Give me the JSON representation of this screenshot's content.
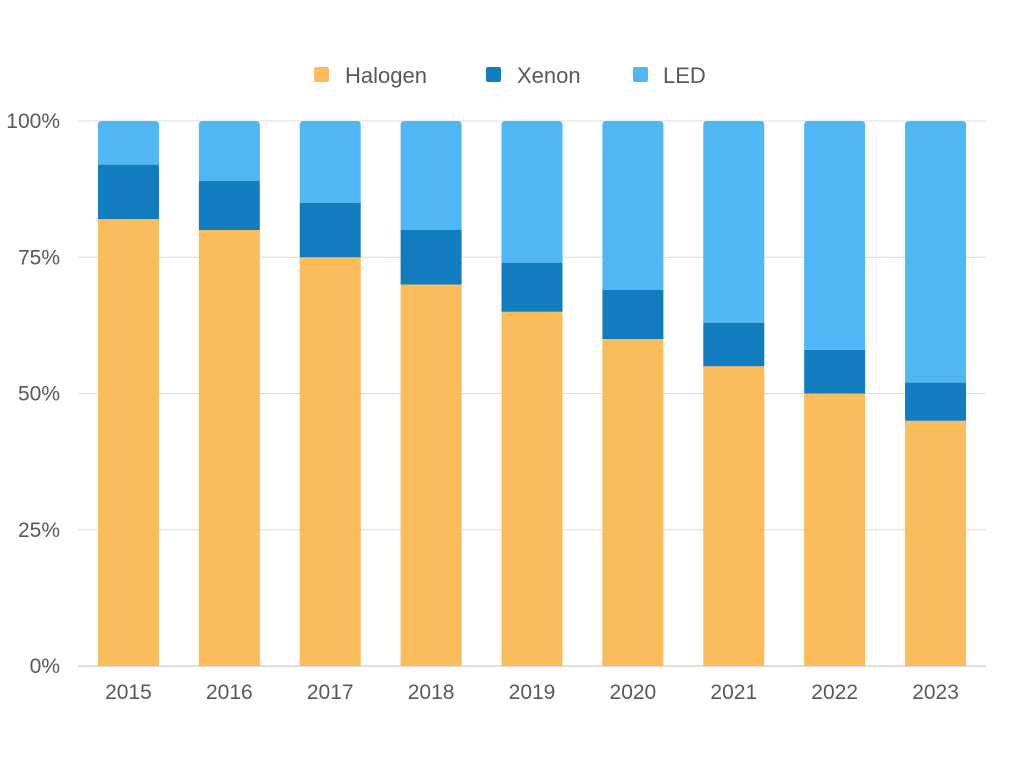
{
  "chart_data": {
    "type": "bar",
    "stacked": true,
    "percent": true,
    "categories": [
      "2015",
      "2016",
      "2017",
      "2018",
      "2019",
      "2020",
      "2021",
      "2022",
      "2023"
    ],
    "series": [
      {
        "name": "Halogen",
        "color": "#fbbc5c",
        "values": [
          82,
          80,
          75,
          70,
          65,
          60,
          55,
          50,
          45
        ]
      },
      {
        "name": "Xenon",
        "color": "#127dbe",
        "values": [
          10,
          9,
          10,
          10,
          9,
          9,
          8,
          8,
          7
        ]
      },
      {
        "name": "LED",
        "color": "#51b6f4",
        "values": [
          8,
          11,
          15,
          20,
          26,
          31,
          37,
          42,
          48
        ]
      }
    ],
    "ylim": [
      0,
      100
    ],
    "yticks": [
      0,
      25,
      50,
      75,
      100
    ],
    "ytick_labels": [
      "0%",
      "25%",
      "50%",
      "75%",
      "100%"
    ],
    "grid": true,
    "legend": "top-center",
    "title": "",
    "xlabel": "",
    "ylabel": ""
  }
}
